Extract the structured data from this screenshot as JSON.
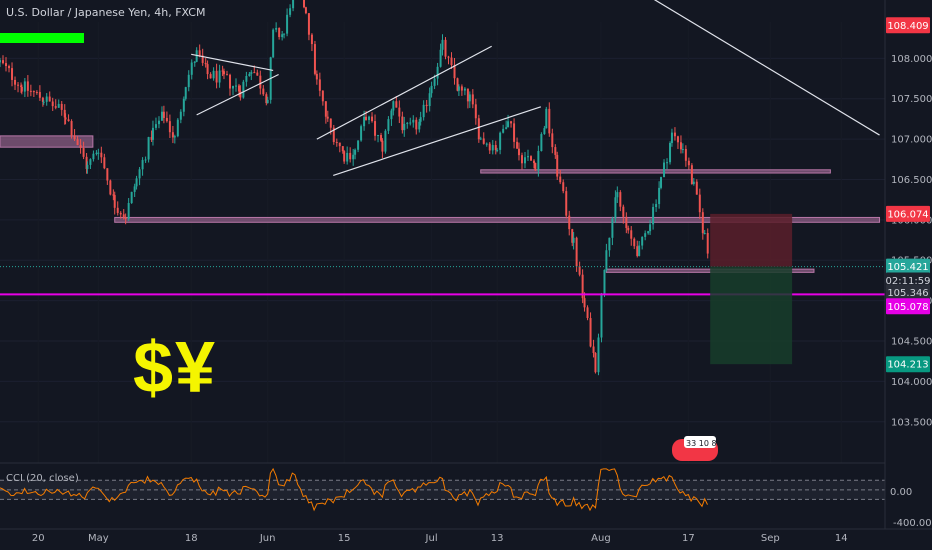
{
  "title": "U.S. Dollar / Japanese Yen, 4h, FXCM",
  "overlay_text": "$¥",
  "indicator": {
    "label": "CCI (20, close)",
    "ticks": [
      "0.00",
      "-400.00"
    ],
    "levels": [
      100,
      0,
      -100
    ]
  },
  "badge_text": "33 10 8",
  "price_axis": {
    "ticks": [
      "108.000",
      "107.500",
      "107.000",
      "106.500",
      "106.000",
      "105.500",
      "105.000",
      "104.500",
      "104.000",
      "103.500"
    ]
  },
  "price_tags": [
    {
      "label": "108.409",
      "value": 108.409,
      "color": "#f23645",
      "text_color": "#ffffff"
    },
    {
      "label": "106.074",
      "value": 106.074,
      "color": "#f23645",
      "text_color": "#ffffff"
    },
    {
      "label": "105.421",
      "value": 105.421,
      "color": "#26a69a",
      "text_color": "#ffffff"
    },
    {
      "label": "02:11:59",
      "value": 105.25,
      "color": "#1e222d",
      "text_color": "#d1d4dc"
    },
    {
      "label": "105.346",
      "value": 105.1,
      "color": "#2a2e39",
      "text_color": "#d1d4dc"
    },
    {
      "label": "105.078",
      "value": 104.93,
      "color": "#e600e6",
      "text_color": "#ffffff"
    },
    {
      "label": "104.213",
      "value": 104.213,
      "color": "#089981",
      "text_color": "#ffffff"
    }
  ],
  "time_axis": {
    "labels": [
      "20",
      "May",
      "18",
      "Jun",
      "15",
      "Jul",
      "13",
      "Aug",
      "17",
      "Sep",
      "14"
    ]
  },
  "colors": {
    "background": "#131722",
    "up": "#26a69a",
    "down": "#ef5350",
    "zone": "#b877a8",
    "magenta_line": "#e600e6",
    "cci": "#f57c00",
    "stop_zone": "#5a1f2a",
    "target_zone": "#173d2a",
    "highlight": "#00ff00"
  },
  "chart_data": {
    "type": "candlestick",
    "title": "U.S. Dollar / Japanese Yen, 4h, FXCM",
    "ylim": [
      103.2,
      108.45
    ],
    "y_ticks": [
      108.0,
      107.5,
      107.0,
      106.5,
      106.0,
      105.5,
      105.0,
      104.5,
      104.0,
      103.5
    ],
    "x_labels": [
      "20",
      "May",
      "18",
      "Jun",
      "15",
      "Jul",
      "13",
      "Aug",
      "17",
      "Sep",
      "14"
    ],
    "path": [
      [
        "Apr 13",
        107.95
      ],
      [
        "Apr 17",
        107.65
      ],
      [
        "Apr 21",
        107.5
      ],
      [
        "Apr 25",
        107.3
      ],
      [
        "Apr 29",
        106.65
      ],
      [
        "May 1",
        106.9
      ],
      [
        "May 4",
        106.2
      ],
      [
        "May 6",
        106.05
      ],
      [
        "May 8",
        106.5
      ],
      [
        "May 11",
        107.1
      ],
      [
        "May 13",
        107.3
      ],
      [
        "May 15",
        107.0
      ],
      [
        "May 17",
        107.7
      ],
      [
        "May 19",
        108.05
      ],
      [
        "May 21",
        107.8
      ],
      [
        "May 24",
        107.75
      ],
      [
        "May 27",
        107.6
      ],
      [
        "May 29",
        107.9
      ],
      [
        "Jun 1",
        107.5
      ],
      [
        "Jun 2",
        108.3
      ],
      [
        "Jun 4",
        108.3
      ],
      [
        "Jun 6",
        109.0
      ],
      [
        "Jun 8",
        108.6
      ],
      [
        "Jun 10",
        107.7
      ],
      [
        "Jun 12",
        107.2
      ],
      [
        "Jun 15",
        106.8
      ],
      [
        "Jun 17",
        106.85
      ],
      [
        "Jun 19",
        107.3
      ],
      [
        "Jun 22",
        106.9
      ],
      [
        "Jun 24",
        107.5
      ],
      [
        "Jun 26",
        107.1
      ],
      [
        "Jun 29",
        107.2
      ],
      [
        "Jul 1",
        107.7
      ],
      [
        "Jul 3",
        108.15
      ],
      [
        "Jul 6",
        107.6
      ],
      [
        "Jul 8",
        107.5
      ],
      [
        "Jul 10",
        107.0
      ],
      [
        "Jul 13",
        106.9
      ],
      [
        "Jul 15",
        107.3
      ],
      [
        "Jul 17",
        106.8
      ],
      [
        "Jul 20",
        106.7
      ],
      [
        "Jul 22",
        107.3
      ],
      [
        "Jul 24",
        106.6
      ],
      [
        "Jul 27",
        105.7
      ],
      [
        "Jul 29",
        104.9
      ],
      [
        "Jul 31",
        104.2
      ],
      [
        "Aug 2",
        105.7
      ],
      [
        "Aug 4",
        106.3
      ],
      [
        "Aug 6",
        105.8
      ],
      [
        "Aug 8",
        105.6
      ],
      [
        "Aug 10",
        106.0
      ],
      [
        "Aug 12",
        106.5
      ],
      [
        "Aug 14",
        107.05
      ],
      [
        "Aug 16",
        106.9
      ],
      [
        "Aug 18",
        106.4
      ],
      [
        "Aug 20",
        105.8
      ],
      [
        "Aug 21",
        105.42
      ]
    ],
    "horizontal_zones": [
      {
        "from": "Apr 13",
        "to": "Apr 30",
        "y": [
          106.9,
          107.04
        ]
      },
      {
        "from": "May 4",
        "to": "Sep 21",
        "y": [
          105.97,
          106.03
        ]
      },
      {
        "from": "Jul 10",
        "to": "Sep 12",
        "y": [
          106.58,
          106.62
        ]
      },
      {
        "from": "Aug 2",
        "to": "Sep 9",
        "y": [
          105.35,
          105.39
        ]
      }
    ],
    "horizontal_lines": [
      {
        "y": 105.078,
        "color": "#e600e6"
      },
      {
        "y": 105.421,
        "color": "#26a69a",
        "style": "dotted"
      }
    ],
    "trendlines": [
      [
        [
          "May 18",
          108.05
        ],
        [
          "Jun 2",
          107.85
        ]
      ],
      [
        [
          "May 19",
          107.3
        ],
        [
          "Jun 3",
          107.8
        ]
      ],
      [
        [
          "Jun 10",
          107.0
        ],
        [
          "Jul 12",
          108.15
        ]
      ],
      [
        [
          "Jun 13",
          106.55
        ],
        [
          "Jul 21",
          107.4
        ]
      ],
      [
        [
          "Aug 9",
          108.8
        ],
        [
          "Sep 21",
          107.05
        ]
      ]
    ],
    "position": {
      "from": "Aug 21",
      "to": "Sep 5",
      "entry": 105.421,
      "stop": 106.074,
      "target": 104.213
    },
    "cci": {
      "label": "CCI (20, close)",
      "levels": [
        100,
        0,
        -100
      ],
      "ylim": [
        -400,
        250
      ]
    }
  }
}
